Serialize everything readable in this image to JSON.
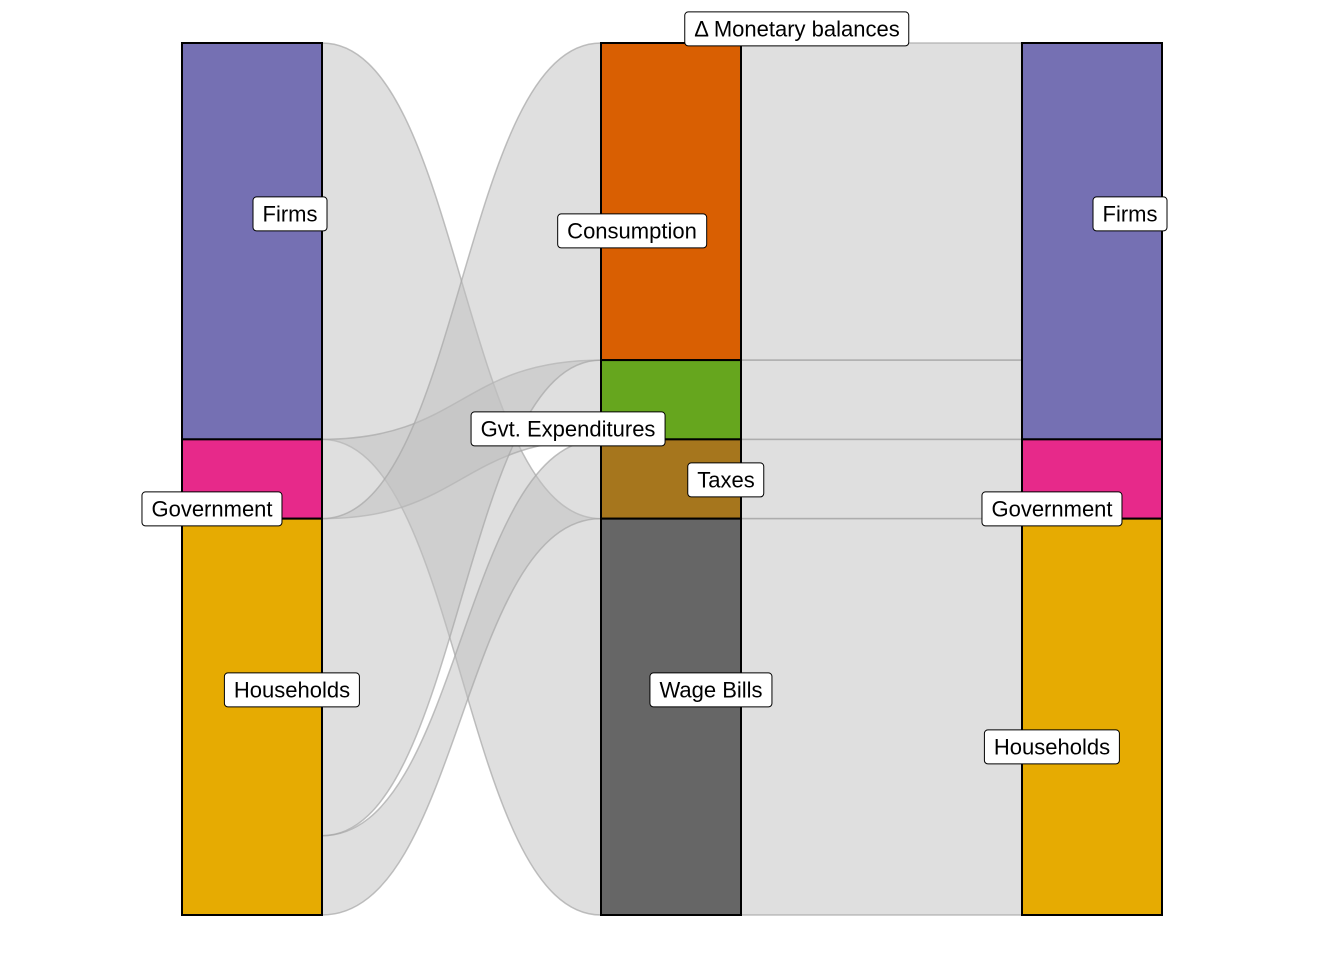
{
  "stages": [
    {
      "nodes": [
        {
          "id": "firms_1",
          "label": "Firms",
          "value": 50,
          "color": "#7570B3"
        },
        {
          "id": "gov_1",
          "label": "Government",
          "value": 10,
          "color": "#E7298A"
        },
        {
          "id": "hh_1",
          "label": "Households",
          "value": 50,
          "color": "#E6AB02"
        }
      ]
    },
    {
      "nodes": [
        {
          "id": "cons",
          "label": "Consumption",
          "value": 40,
          "color": "#D95F02"
        },
        {
          "id": "gexp",
          "label": "Gvt. Expenditures",
          "value": 10,
          "color": "#66A61E"
        },
        {
          "id": "tax",
          "label": "Taxes",
          "value": 10,
          "color": "#A6761D"
        },
        {
          "id": "wage",
          "label": "Wage Bills",
          "value": 50,
          "color": "#666666"
        },
        {
          "id": "dmon",
          "label": "Δ Monetary balances",
          "value": 0,
          "color": "#1B9E77"
        }
      ]
    },
    {
      "nodes": [
        {
          "id": "firms_2",
          "label": "Firms",
          "value": 50,
          "color": "#7570B3"
        },
        {
          "id": "gov_2",
          "label": "Government",
          "value": 10,
          "color": "#E7298A"
        },
        {
          "id": "hh_2",
          "label": "Households",
          "value": 50,
          "color": "#E6AB02"
        }
      ]
    }
  ],
  "flows": [
    {
      "from": "firms_1",
      "to": "wage",
      "value": 50
    },
    {
      "from": "gov_1",
      "to": "gexp",
      "value": 10
    },
    {
      "from": "hh_1",
      "to": "cons",
      "value": 40
    },
    {
      "from": "hh_1",
      "to": "tax",
      "value": 10
    },
    {
      "from": "cons",
      "to": "firms_2",
      "value": 40
    },
    {
      "from": "gexp",
      "to": "firms_2",
      "value": 10
    },
    {
      "from": "tax",
      "to": "gov_2",
      "value": 10
    },
    {
      "from": "wage",
      "to": "hh_2",
      "value": 50
    }
  ],
  "style": {
    "link_fill": "#BFBFBF",
    "link_fill_opacity": 0.5,
    "link_stroke": "#A6A6A6",
    "node_stroke": "#000000"
  }
}
